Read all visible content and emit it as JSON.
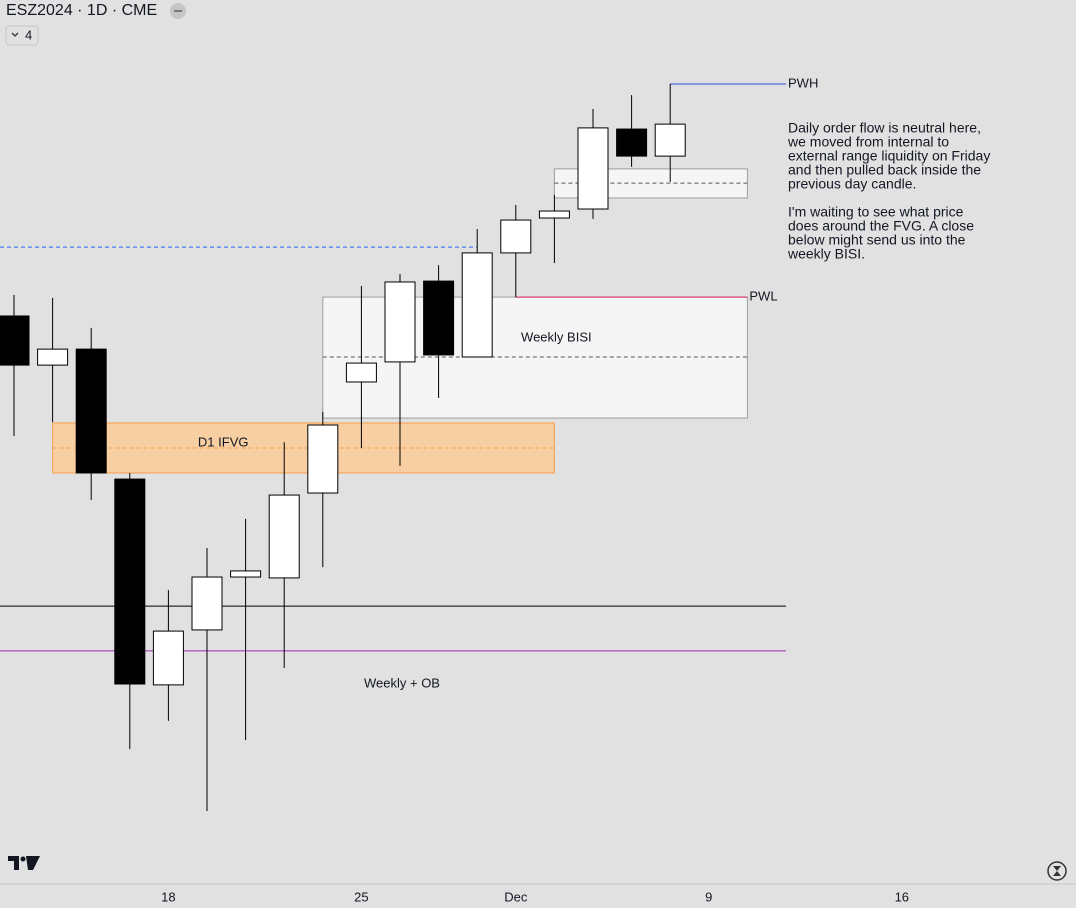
{
  "chart_data": {
    "type": "candlestick",
    "title": "ESZ2024 · 1D · CME",
    "badge": "4",
    "categories": [
      null,
      null,
      null,
      null,
      "18",
      null,
      null,
      null,
      null,
      "25",
      null,
      null,
      null,
      "Dec",
      null,
      null,
      null,
      null,
      "9",
      null,
      null,
      null,
      null,
      "16",
      null,
      null,
      null,
      null
    ],
    "open": [
      6036.2,
      6019.3,
      6024.8,
      5980.1,
      5909.3,
      5928.2,
      5946.4,
      5946.1,
      5975.3,
      6013.5,
      6020.4,
      6048.2,
      6022.1,
      6057.9,
      6069.9,
      6073.0,
      6100.5,
      6091.2,
      null,
      null,
      null,
      null,
      null,
      null,
      null,
      null,
      null,
      null
    ],
    "high": [
      6043.4,
      6042.4,
      6032.1,
      5982.2,
      5941.9,
      5956.4,
      5966.4,
      5992.8,
      6003.2,
      6046.5,
      6050.6,
      6053.7,
      6066.1,
      6074.4,
      6077.8,
      6107.4,
      6112.2,
      6116.0,
      null,
      null,
      null,
      null,
      null,
      null,
      null,
      null,
      null,
      null
    ],
    "low": [
      5994.9,
      5999.7,
      5972.9,
      5887.2,
      5896.9,
      5865.9,
      5890.3,
      5915.1,
      5949.8,
      5990.8,
      5984.6,
      6008.0,
      6022.1,
      6042.7,
      6054.4,
      6069.6,
      6087.5,
      6082.3,
      null,
      null,
      null,
      null,
      null,
      null,
      null,
      null,
      null,
      null
    ],
    "close": [
      6019.3,
      6024.8,
      5982.2,
      5909.6,
      5927.8,
      5946.4,
      5948.5,
      5974.6,
      5998.7,
      6020.0,
      6047.9,
      6022.8,
      6057.9,
      6069.2,
      6072.3,
      6100.9,
      6091.2,
      6102.2,
      null,
      null,
      null,
      null,
      null,
      null,
      null,
      null,
      null,
      null
    ],
    "up_color": "#ffffff",
    "down_color": "#000000",
    "ylim": [
      5840.8,
      6144.9
    ],
    "levels": [
      {
        "value": 6116.0,
        "color": "#2a4bd7",
        "x_range": [
          17,
          20
        ],
        "label": "PWH"
      },
      {
        "value": 6042.7,
        "color": "#e0245e",
        "x_range": [
          13,
          19
        ],
        "label": "PWL"
      },
      {
        "value": 6059.9,
        "color": "#2962ff",
        "dash": true,
        "extend_left": true,
        "x_range": [
          0,
          12
        ]
      },
      {
        "value": 5936.4,
        "color": "#000000",
        "extend_left": true,
        "x_range": [
          0,
          20
        ]
      },
      {
        "value": 5921.0,
        "color": "#9c27b0",
        "extend_left": true,
        "x_range": [
          0,
          20
        ]
      }
    ],
    "boxes": [
      {
        "top": 6086.8,
        "bottom": 6076.8,
        "mid": 6081.9,
        "x_range": [
          14,
          19
        ],
        "fill": "#f5f5f5",
        "stroke": "#9e9e9e"
      },
      {
        "top": 6042.7,
        "bottom": 6001.1,
        "mid": 6022.1,
        "x_range": [
          8,
          19
        ],
        "fill": "#f5f5f5",
        "stroke": "#9e9e9e",
        "label": "Weekly BISI"
      },
      {
        "top": 5999.4,
        "bottom": 5982.2,
        "mid": 5990.8,
        "x_range": [
          1,
          14
        ],
        "fill": "#f8cfa3",
        "stroke": "#f5a04a",
        "label": "D1 IFVG"
      }
    ],
    "annotation": "Weekly + OB",
    "note": [
      [
        "Daily order flow is neutral here,",
        "we moved from internal to",
        "external range liquidity on Friday",
        "and then pulled back inside the",
        "previous day candle."
      ],
      [
        "I'm waiting to see what price",
        "does around the FVG. A close",
        "below might send us into the",
        "weekly BISI."
      ]
    ]
  }
}
